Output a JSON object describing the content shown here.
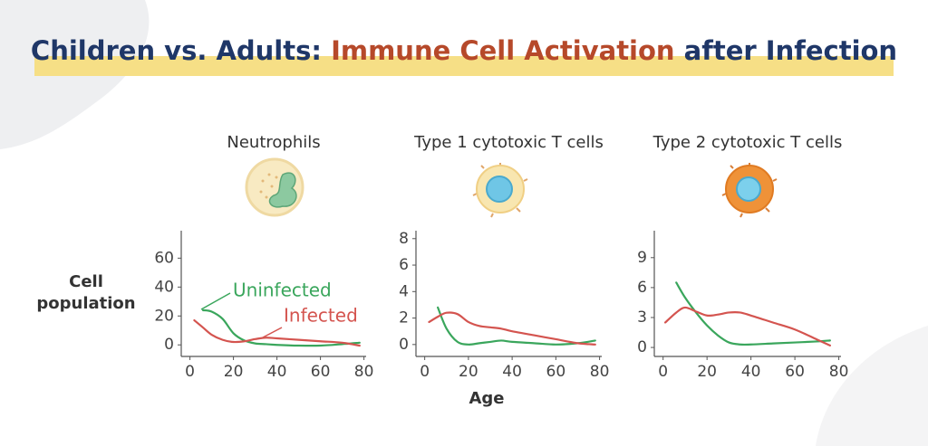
{
  "header": {
    "title_parts": [
      "Children vs. Adults: ",
      "Immune Cell Activation",
      " after Infection"
    ],
    "y_label": "Cell population",
    "x_label": "Age"
  },
  "chart_data": [
    {
      "type": "line",
      "title": "Neutrophils",
      "x": [
        2,
        6,
        10,
        15,
        20,
        25,
        30,
        35,
        40,
        50,
        60,
        70,
        78
      ],
      "series": [
        {
          "name": "Uninfected",
          "color": "#3aa65c",
          "values": [
            null,
            24,
            23,
            18,
            8,
            3,
            1,
            0.5,
            0,
            -0.5,
            -0.5,
            0.5,
            1.5
          ]
        },
        {
          "name": "Infected",
          "color": "#d4544f",
          "values": [
            17,
            12,
            7,
            3.5,
            2,
            2.5,
            4,
            5,
            4.5,
            3.5,
            2.5,
            1.5,
            -0.5
          ]
        }
      ],
      "xlim": [
        -4,
        81
      ],
      "xticks": [
        0,
        20,
        40,
        60,
        80
      ],
      "ylim": [
        -8,
        79
      ],
      "yticks": [
        0,
        20,
        40,
        60
      ]
    },
    {
      "type": "line",
      "title": "Type 1 cytotoxic T cells",
      "x": [
        2,
        6,
        10,
        15,
        20,
        25,
        30,
        35,
        40,
        50,
        60,
        70,
        78
      ],
      "series": [
        {
          "color": "#3aa65c",
          "values": [
            null,
            2.8,
            1.2,
            0.2,
            0,
            0.1,
            0.2,
            0.3,
            0.2,
            0.1,
            0,
            0.1,
            0.3
          ]
        },
        {
          "color": "#d4544f",
          "values": [
            1.7,
            2.1,
            2.4,
            2.3,
            1.7,
            1.4,
            1.3,
            1.2,
            1.0,
            0.7,
            0.4,
            0.1,
            0
          ]
        }
      ],
      "xlim": [
        -4,
        81
      ],
      "xticks": [
        0,
        20,
        40,
        60,
        80
      ],
      "ylim": [
        -0.9,
        8.6
      ],
      "yticks": [
        0,
        2,
        4,
        6,
        8
      ]
    },
    {
      "type": "line",
      "title": "Type 2 cytotoxic T cells",
      "x": [
        1,
        6,
        10,
        15,
        20,
        25,
        30,
        35,
        40,
        50,
        60,
        70,
        76
      ],
      "series": [
        {
          "color": "#3aa65c",
          "values": [
            null,
            6.5,
            5,
            3.5,
            2.2,
            1.2,
            0.5,
            0.3,
            0.3,
            0.4,
            0.5,
            0.6,
            0.7
          ]
        },
        {
          "color": "#d4544f",
          "values": [
            2.5,
            3.5,
            4,
            3.6,
            3.2,
            3.3,
            3.5,
            3.5,
            3.2,
            2.5,
            1.8,
            0.8,
            0.2
          ]
        }
      ],
      "xlim": [
        -4,
        81
      ],
      "xticks": [
        0,
        20,
        40,
        60,
        80
      ],
      "ylim": [
        -0.9,
        11.7
      ],
      "yticks": [
        0,
        3,
        6,
        9
      ]
    }
  ]
}
